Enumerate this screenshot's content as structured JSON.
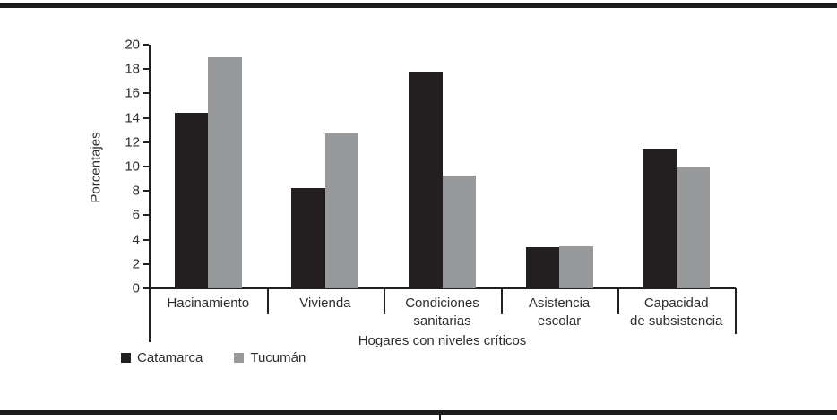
{
  "chart_data": {
    "type": "bar",
    "title": "",
    "categories": [
      "Hacinamiento",
      "Vivienda",
      "Condiciones sanitarias",
      "Asistencia escolar",
      "Capacidad de subsistencia"
    ],
    "category_label_lines": [
      [
        "Hacinamiento"
      ],
      [
        "Vivienda"
      ],
      [
        "Condiciones",
        "sanitarias"
      ],
      [
        "Asistencia",
        "escolar"
      ],
      [
        "Capacidad",
        "de subsistencia"
      ]
    ],
    "series": [
      {
        "name": "Catamarca",
        "color": "#231f20",
        "values": [
          14.4,
          8.2,
          17.8,
          3.4,
          11.5
        ]
      },
      {
        "name": "Tucumán",
        "color": "#97999b",
        "values": [
          19.0,
          12.7,
          9.3,
          3.45,
          10.0
        ]
      }
    ],
    "xlabel": "Hogares con niveles críticos",
    "ylabel": "Porcentajes",
    "ylim": [
      0,
      20
    ],
    "ytick_step": 2,
    "yticks": [
      0,
      2,
      4,
      6,
      8,
      10,
      12,
      14,
      16,
      18,
      20
    ],
    "grid": false,
    "legend_position": "bottom-left",
    "axis_color": "#231f20"
  }
}
